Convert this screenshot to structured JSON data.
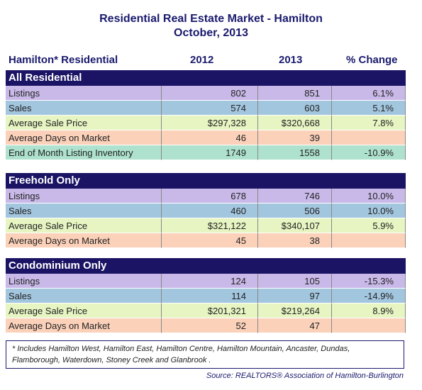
{
  "title": "Residential Real Estate Market - Hamilton",
  "subtitle": "October, 2013",
  "header": [
    "Hamilton* Residential",
    "2012",
    "2013",
    "% Change"
  ],
  "sections": [
    {
      "title": "All Residential",
      "rows": [
        [
          "Listings",
          "802",
          "851",
          "6.1%"
        ],
        [
          "Sales",
          "574",
          "603",
          "5.1%"
        ],
        [
          "Average Sale Price",
          "$297,328",
          "$320,668",
          "7.8%"
        ],
        [
          "Average Days on Market",
          "46",
          "39",
          null
        ],
        [
          "End of Month Listing Inventory",
          "1749",
          "1558",
          "-10.9%"
        ]
      ]
    },
    {
      "title": "Freehold Only",
      "rows": [
        [
          "Listings",
          "678",
          "746",
          "10.0%"
        ],
        [
          "Sales",
          "460",
          "506",
          "10.0%"
        ],
        [
          "Average Sale Price",
          "$321,122",
          "$340,107",
          "5.9%"
        ],
        [
          "Average Days on Market",
          "45",
          "38",
          null
        ]
      ]
    },
    {
      "title": "Condominium Only",
      "rows": [
        [
          "Listings",
          "124",
          "105",
          "-15.3%"
        ],
        [
          "Sales",
          "114",
          "97",
          "-14.9%"
        ],
        [
          "Average Sale Price",
          "$201,321",
          "$219,264",
          "8.9%"
        ],
        [
          "Average Days on Market",
          "52",
          "47",
          null
        ]
      ]
    }
  ],
  "footnote": "* Includes Hamilton West, Hamilton East, Hamilton Centre, Hamilton Mountain, Ancaster, Dundas, Flamborough, Waterdown, Stoney Creek and Glanbrook .",
  "source": "Source:  REALTORS® Association of Hamilton-Burlington"
}
